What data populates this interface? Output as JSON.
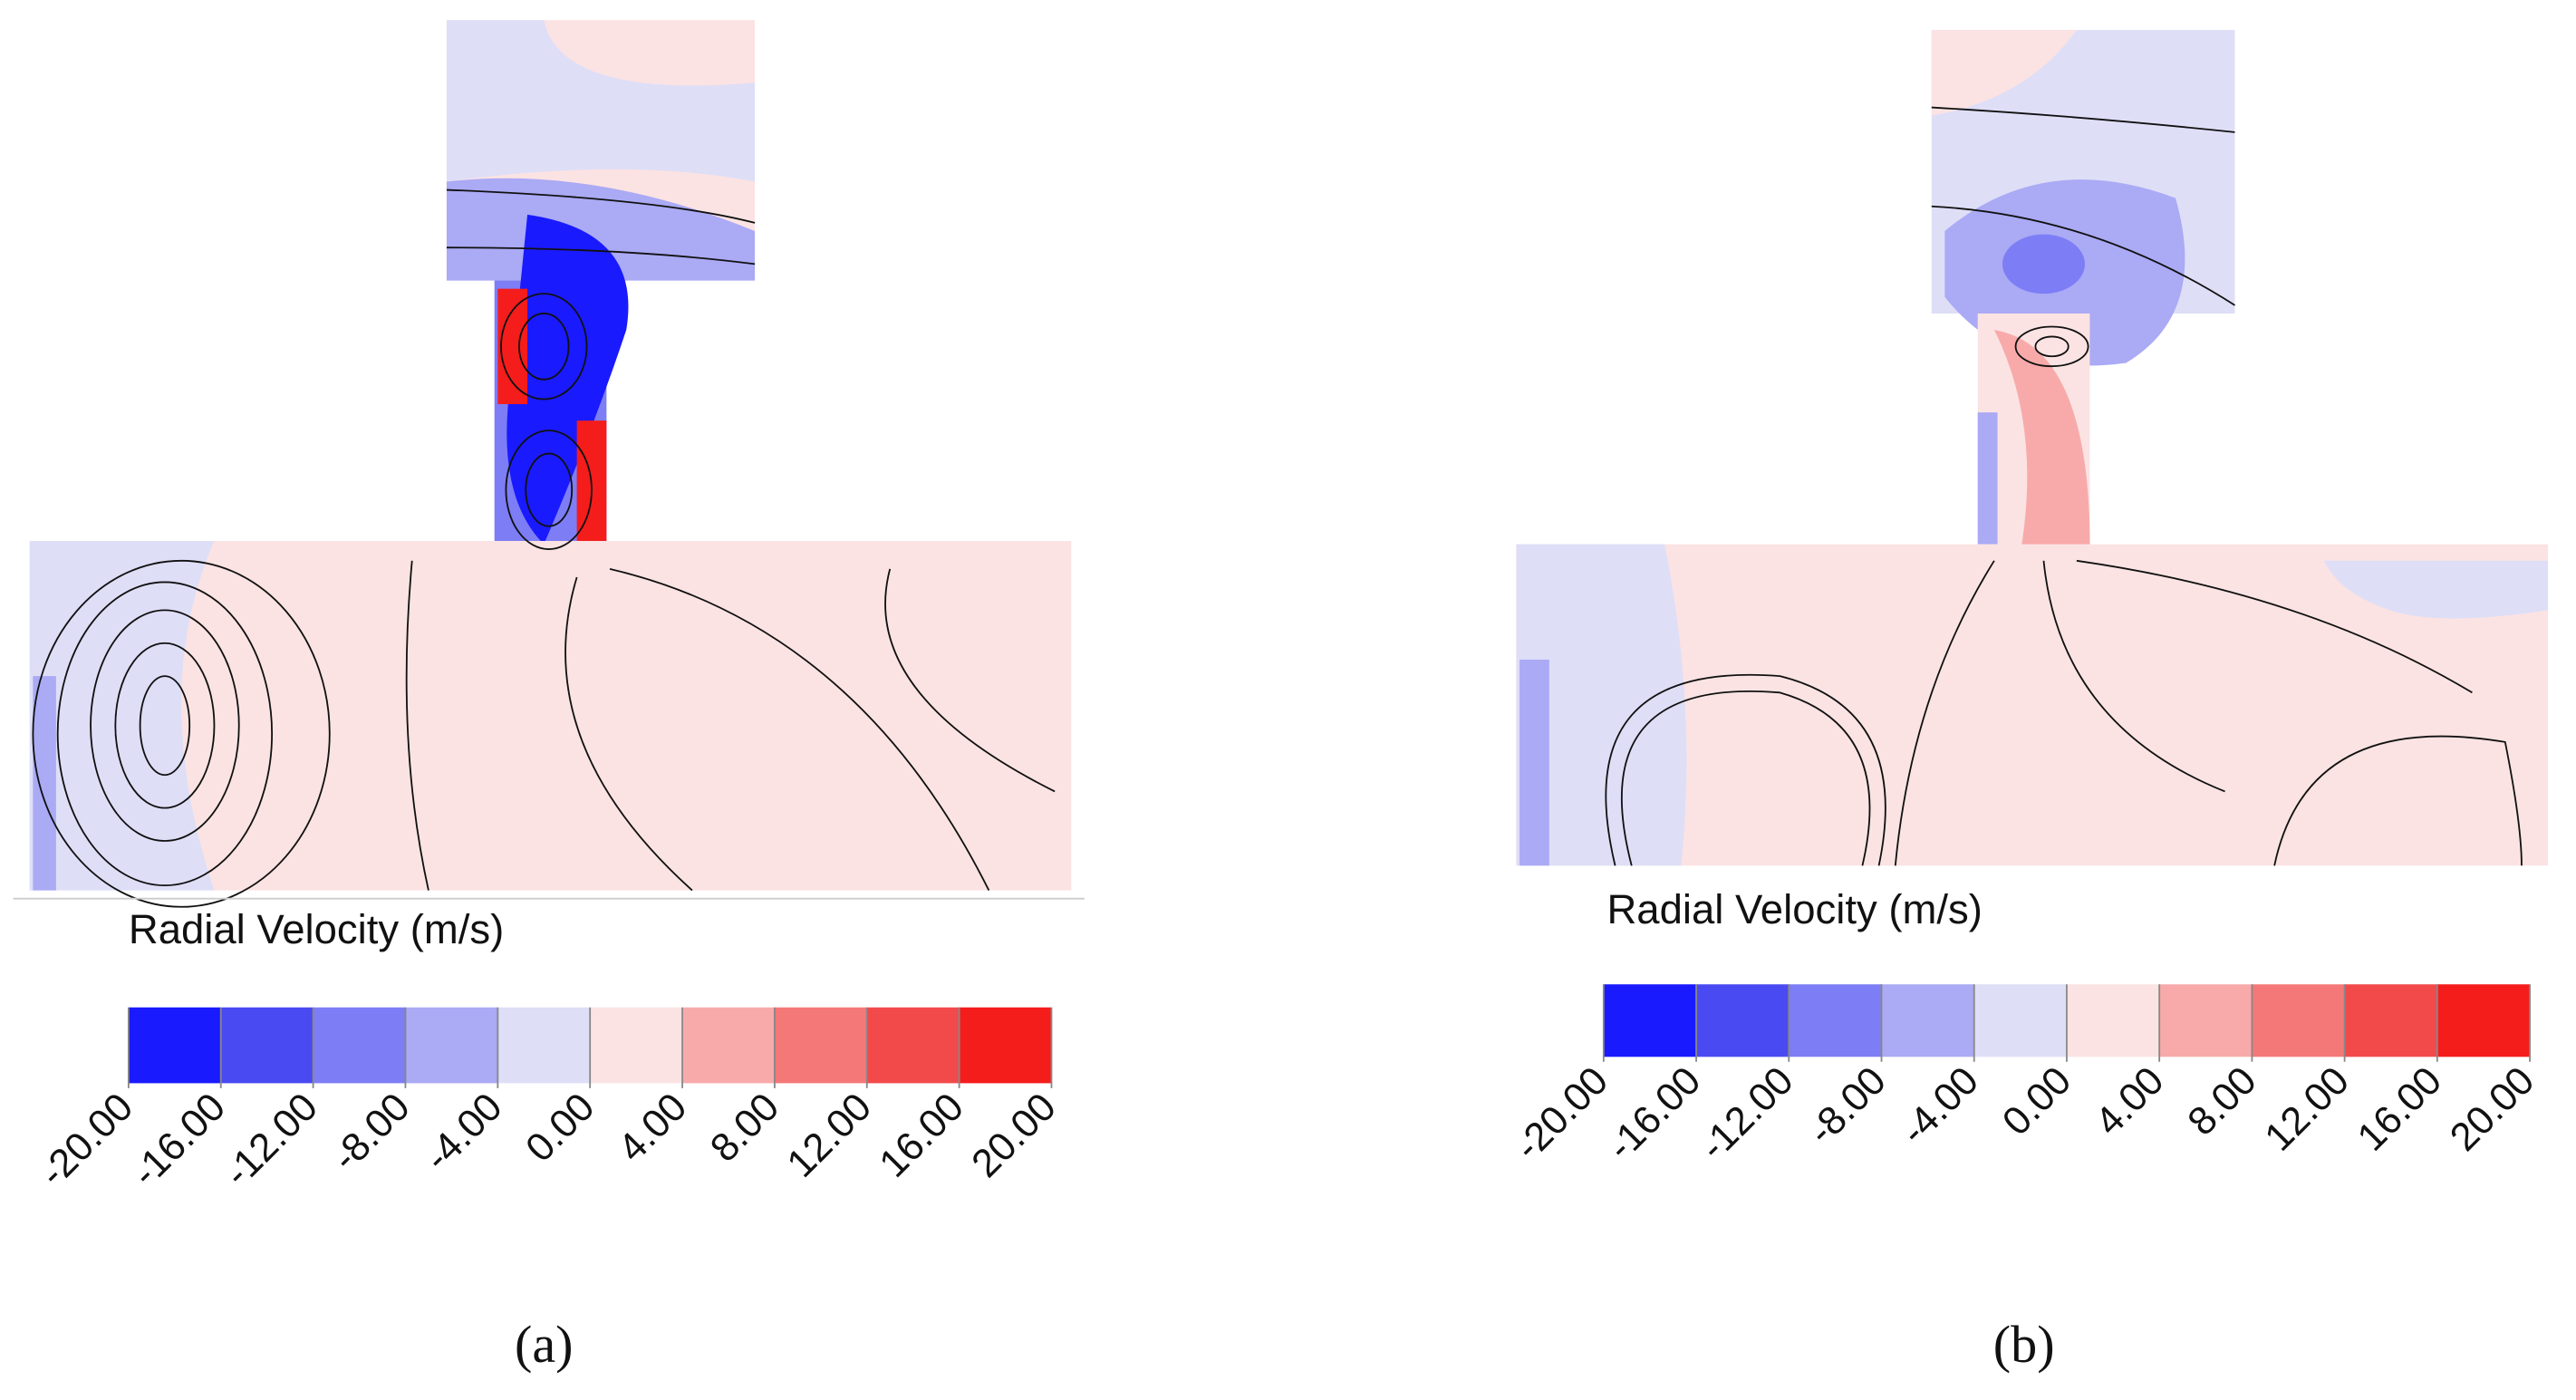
{
  "chart_data": [
    {
      "type": "colorbar",
      "panel_label": "(a)",
      "label": "Radial Velocity (m/s)",
      "lim": [
        -20,
        20
      ],
      "ticks": [
        {
          "value": -20,
          "label": "-20.00"
        },
        {
          "value": -16,
          "label": "-16.00"
        },
        {
          "value": -12,
          "label": "-12.00"
        },
        {
          "value": -8,
          "label": "-8.00"
        },
        {
          "value": -4,
          "label": "-4.00"
        },
        {
          "value": 0,
          "label": "0.00"
        },
        {
          "value": 4,
          "label": "4.00"
        },
        {
          "value": 8,
          "label": "8.00"
        },
        {
          "value": 12,
          "label": "12.00"
        },
        {
          "value": 16,
          "label": "16.00"
        },
        {
          "value": 20,
          "label": "20.00"
        }
      ],
      "colors": [
        "#1a1aff",
        "#4a4af2",
        "#7d7df5",
        "#aaaaf5",
        "#dedef7",
        "#fbe3e3",
        "#f8aaaa",
        "#f57878",
        "#f24a4a",
        "#f51c1c"
      ]
    },
    {
      "type": "colorbar",
      "panel_label": "(b)",
      "label": "Radial Velocity (m/s)",
      "lim": [
        -20,
        20
      ],
      "ticks": [
        {
          "value": -20,
          "label": "-20.00"
        },
        {
          "value": -16,
          "label": "-16.00"
        },
        {
          "value": -12,
          "label": "-12.00"
        },
        {
          "value": -8,
          "label": "-8.00"
        },
        {
          "value": -4,
          "label": "-4.00"
        },
        {
          "value": 0,
          "label": "0.00"
        },
        {
          "value": 4,
          "label": "4.00"
        },
        {
          "value": 8,
          "label": "8.00"
        },
        {
          "value": 12,
          "label": "12.00"
        },
        {
          "value": 16,
          "label": "16.00"
        },
        {
          "value": 20,
          "label": "20.00"
        }
      ],
      "colors": [
        "#1a1aff",
        "#4a4af2",
        "#7d7df5",
        "#aaaaf5",
        "#dedef7",
        "#fbe3e3",
        "#f8aaaa",
        "#f57878",
        "#f24a4a",
        "#f51c1c"
      ]
    }
  ]
}
